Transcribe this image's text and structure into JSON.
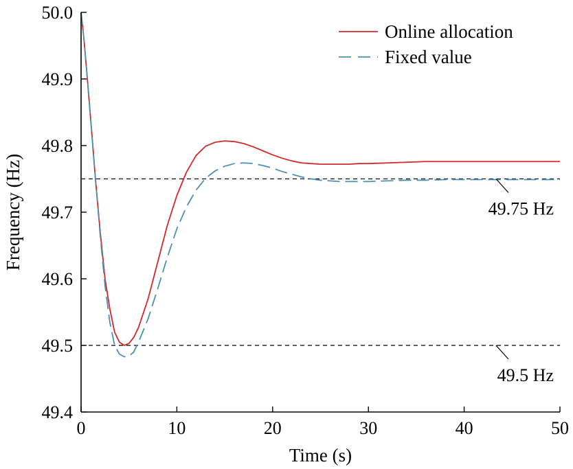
{
  "chart_data": {
    "type": "line",
    "xlabel": "Time (s)",
    "ylabel": "Frequency (Hz)",
    "xlim": [
      0,
      50
    ],
    "ylim": [
      49.4,
      50.0
    ],
    "xticks": [
      0,
      10,
      20,
      30,
      40,
      50
    ],
    "yticks": [
      49.4,
      49.5,
      49.6,
      49.7,
      49.8,
      49.9,
      50.0
    ],
    "xtick_labels": [
      "0",
      "10",
      "20",
      "30",
      "40",
      "50"
    ],
    "ytick_labels": [
      "49.4",
      "49.5",
      "49.6",
      "49.7",
      "49.8",
      "49.9",
      "50.0"
    ],
    "legend_position": "top-right",
    "grid": false,
    "series": [
      {
        "name": "Online allocation",
        "color": "#d62728",
        "style": "solid",
        "x": [
          0,
          0.3,
          0.6,
          1,
          1.5,
          2,
          2.5,
          3,
          3.5,
          4,
          4.5,
          5,
          5.5,
          6,
          7,
          8,
          9,
          10,
          11,
          12,
          13,
          14,
          15,
          16,
          17,
          18,
          19,
          20,
          21,
          22,
          23,
          24,
          25,
          26,
          27,
          28,
          29,
          30,
          32,
          34,
          36,
          38,
          40,
          42,
          44,
          46,
          48,
          50
        ],
        "y": [
          50.0,
          49.96,
          49.91,
          49.84,
          49.75,
          49.67,
          49.6,
          49.555,
          49.52,
          49.505,
          49.5,
          49.503,
          49.512,
          49.527,
          49.57,
          49.625,
          49.68,
          49.725,
          49.76,
          49.785,
          49.799,
          49.805,
          49.807,
          49.806,
          49.803,
          49.798,
          49.792,
          49.786,
          49.781,
          49.777,
          49.774,
          49.773,
          49.772,
          49.772,
          49.772,
          49.772,
          49.773,
          49.773,
          49.774,
          49.775,
          49.776,
          49.776,
          49.776,
          49.776,
          49.776,
          49.776,
          49.776,
          49.776
        ]
      },
      {
        "name": "Fixed value",
        "color": "#4a90b0",
        "style": "dashed",
        "x": [
          0,
          0.3,
          0.6,
          1,
          1.5,
          2,
          2.5,
          3,
          3.5,
          4,
          4.5,
          5,
          5.5,
          6,
          7,
          8,
          9,
          10,
          11,
          12,
          13,
          14,
          15,
          16,
          17,
          18,
          19,
          20,
          21,
          22,
          23,
          24,
          25,
          26,
          27,
          28,
          29,
          30,
          32,
          34,
          36,
          38,
          40,
          42,
          44,
          46,
          48,
          50
        ],
        "y": [
          50.0,
          49.96,
          49.91,
          49.84,
          49.75,
          49.665,
          49.59,
          49.535,
          49.5,
          49.487,
          49.483,
          49.484,
          49.49,
          49.505,
          49.54,
          49.585,
          49.632,
          49.675,
          49.708,
          49.733,
          49.751,
          49.762,
          49.769,
          49.773,
          49.774,
          49.773,
          49.77,
          49.766,
          49.761,
          49.757,
          49.753,
          49.75,
          49.748,
          49.747,
          49.746,
          49.746,
          49.746,
          49.746,
          49.747,
          49.748,
          49.748,
          49.749,
          49.749,
          49.749,
          49.749,
          49.749,
          49.749,
          49.749
        ]
      }
    ],
    "reference_lines": [
      {
        "y": 49.75,
        "label": "49.75 Hz"
      },
      {
        "y": 49.5,
        "label": "49.5 Hz"
      }
    ]
  }
}
